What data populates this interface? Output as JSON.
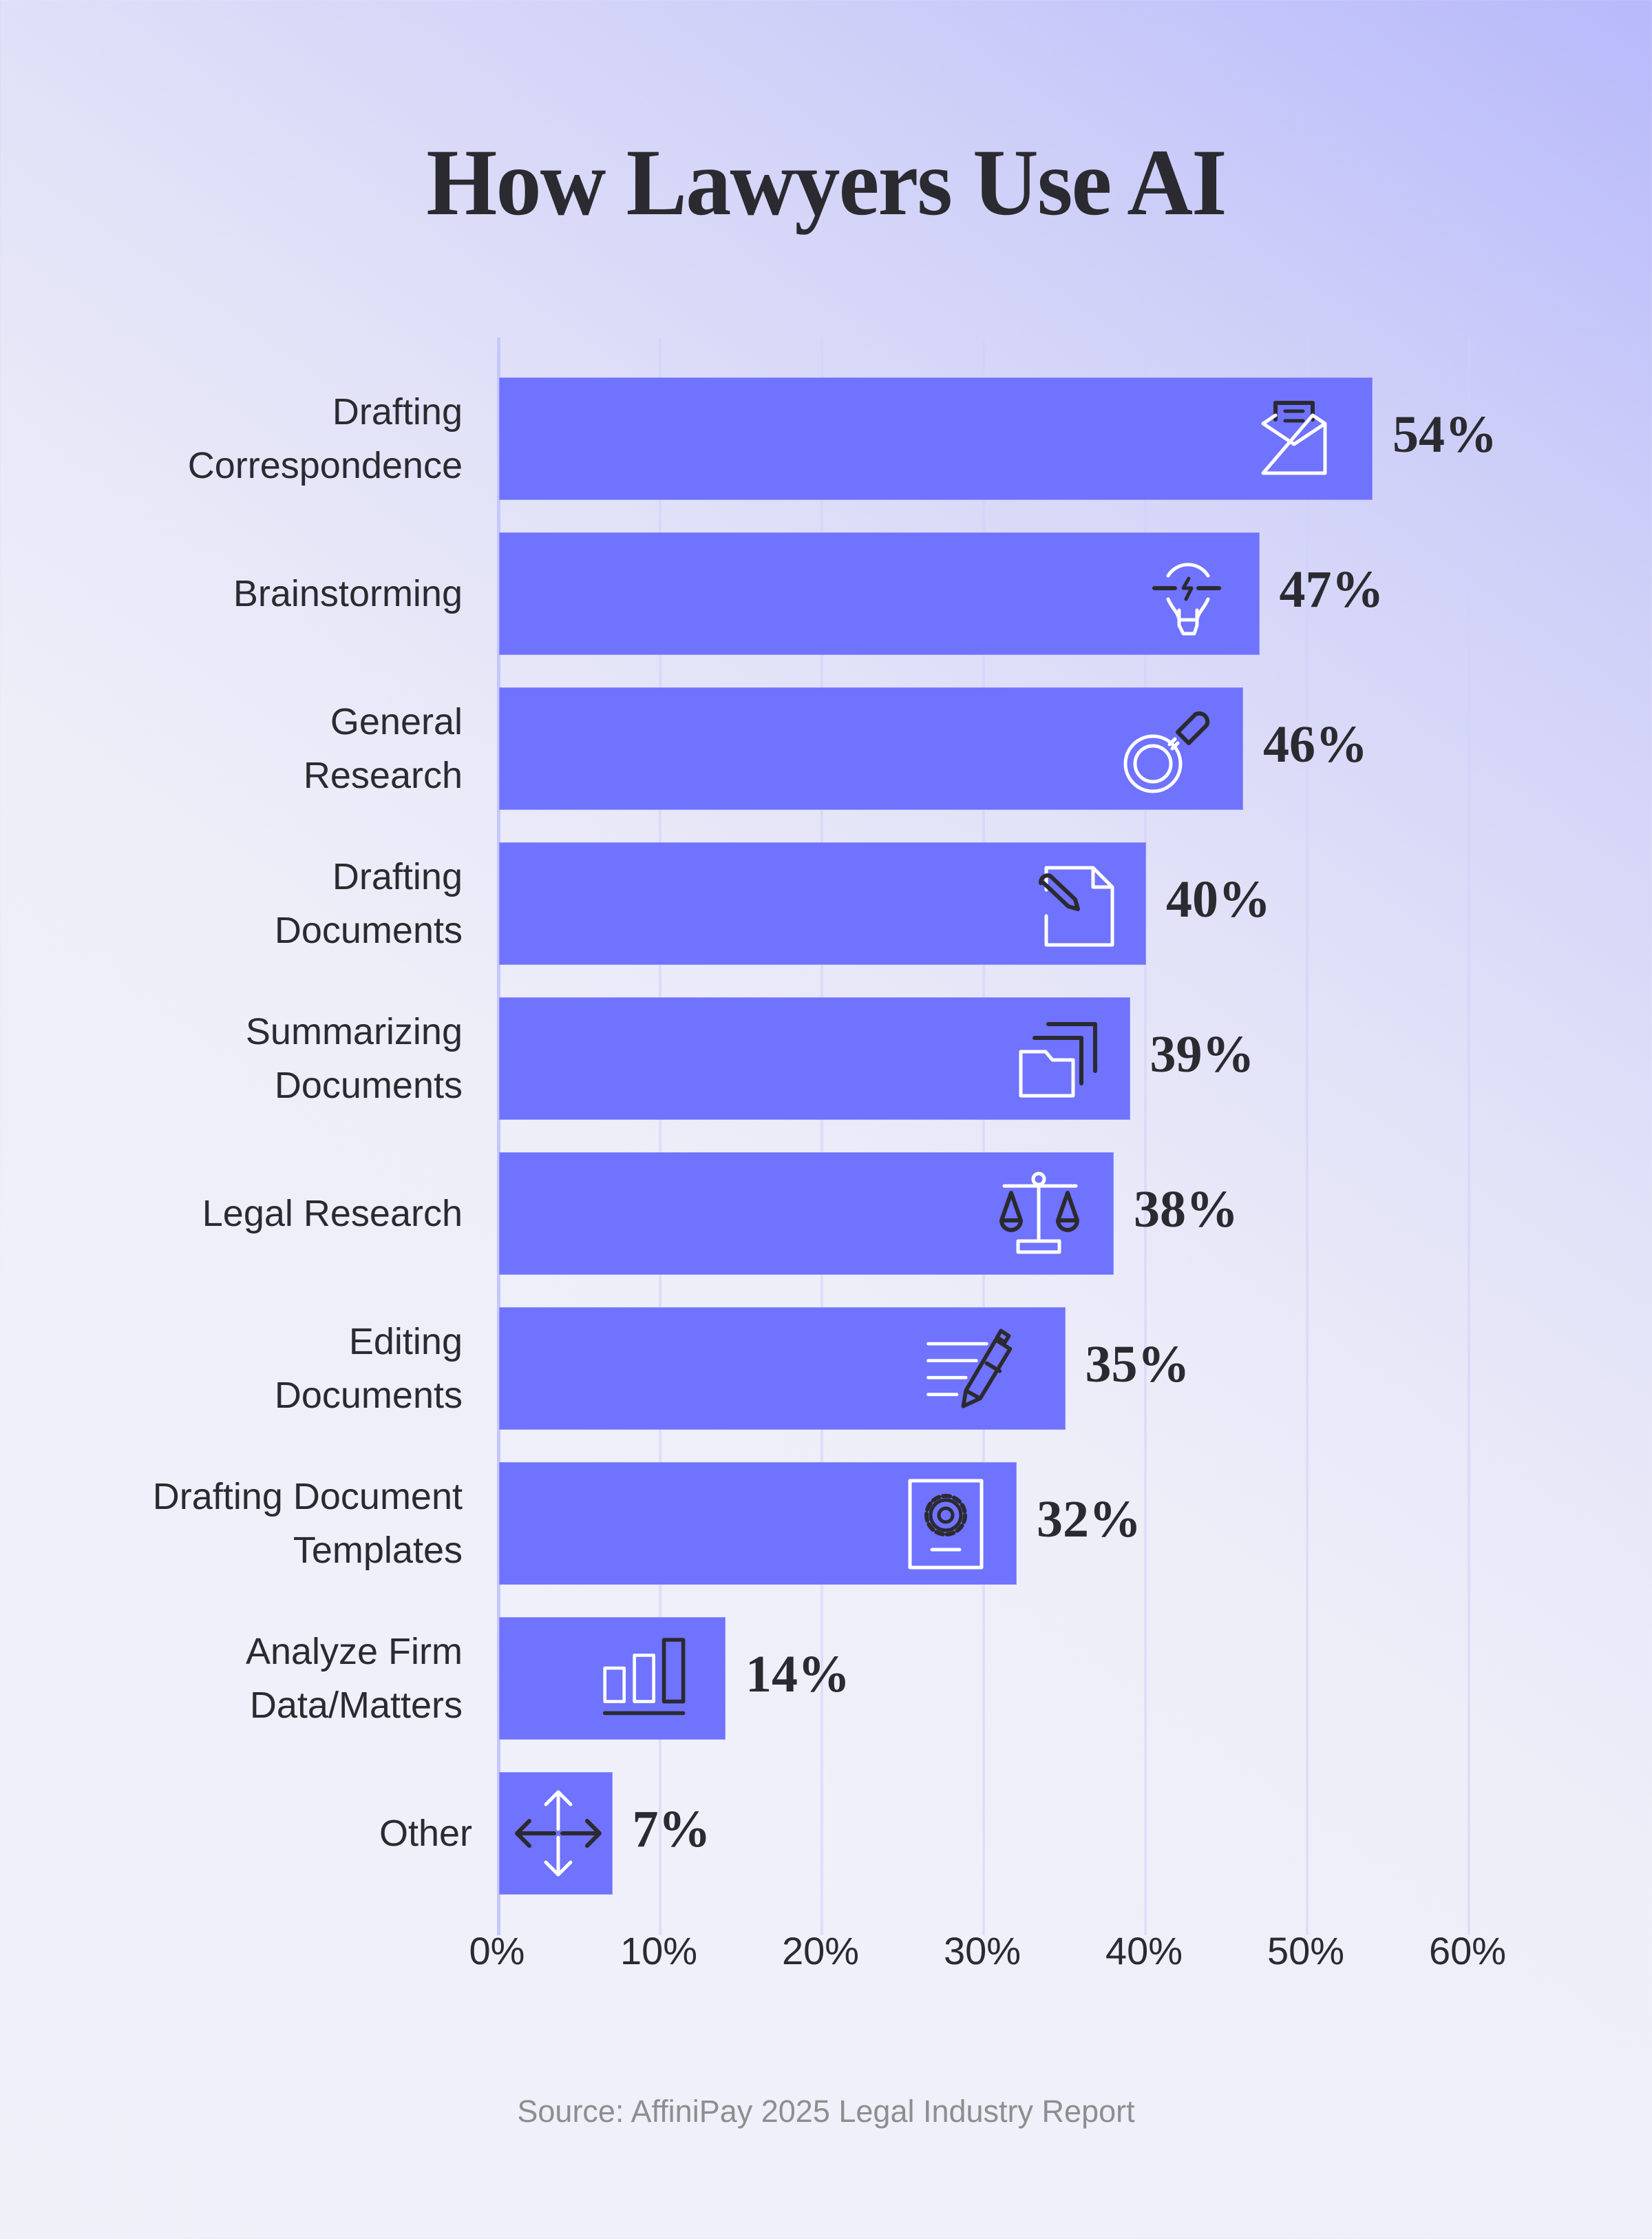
{
  "title": "How Lawyers Use AI",
  "source": "Source: AffiniPay 2025 Legal Industry Report",
  "colors": {
    "bar": "#6f73fd",
    "text": "#2b2a30",
    "icon_light": "#ffffff",
    "icon_dark": "#2b2a30",
    "source_text": "#8e8e90"
  },
  "axis": {
    "ticks": [
      "0%",
      "10%",
      "20%",
      "30%",
      "40%",
      "50%",
      "60%"
    ]
  },
  "bars": [
    {
      "line1": "Drafting",
      "line2": "Correspondence",
      "value": 54,
      "label": "54%",
      "icon": "envelope-letter-icon"
    },
    {
      "line1": "",
      "line2": "Brainstorming",
      "value": 47,
      "label": "47%",
      "icon": "lightbulb-icon"
    },
    {
      "line1": "General",
      "line2": "Research",
      "value": 46,
      "label": "46%",
      "icon": "magnifying-glass-icon"
    },
    {
      "line1": "Drafting",
      "line2": "Documents",
      "value": 40,
      "label": "40%",
      "icon": "document-pencil-icon"
    },
    {
      "line1": "Summarizing",
      "line2": "Documents",
      "value": 39,
      "label": "39%",
      "icon": "stacked-folders-icon"
    },
    {
      "line1": "",
      "line2": "Legal Research",
      "value": 38,
      "label": "38%",
      "icon": "scales-of-justice-icon"
    },
    {
      "line1": "Editing",
      "line2": "Documents",
      "value": 35,
      "label": "35%",
      "icon": "pen-lines-icon"
    },
    {
      "line1": "Drafting Document",
      "line2": "Templates",
      "value": 32,
      "label": "32%",
      "icon": "gear-document-icon"
    },
    {
      "line1": "Analyze Firm",
      "line2": "Data/Matters",
      "value": 14,
      "label": "14%",
      "icon": "bar-chart-icon"
    },
    {
      "line1": "",
      "line2": "Other",
      "value": 7,
      "label": "7%",
      "icon": "move-arrows-icon"
    }
  ],
  "chart_data": {
    "type": "bar",
    "orientation": "horizontal",
    "title": "How Lawyers Use AI",
    "categories": [
      "Drafting Correspondence",
      "Brainstorming",
      "General Research",
      "Drafting Documents",
      "Summarizing Documents",
      "Legal Research",
      "Editing Documents",
      "Drafting Document Templates",
      "Analyze Firm Data/Matters",
      "Other"
    ],
    "values": [
      54,
      47,
      46,
      40,
      39,
      38,
      35,
      32,
      14,
      7
    ],
    "value_labels": [
      "54%",
      "47%",
      "46%",
      "40%",
      "39%",
      "38%",
      "35%",
      "32%",
      "14%",
      "7%"
    ],
    "xlabel": "",
    "ylabel": "",
    "xlim": [
      0,
      60
    ],
    "x_ticks": [
      "0%",
      "10%",
      "20%",
      "30%",
      "40%",
      "50%",
      "60%"
    ],
    "grid": true,
    "legend": null,
    "annotation": "Source: AffiniPay 2025 Legal Industry Report"
  }
}
